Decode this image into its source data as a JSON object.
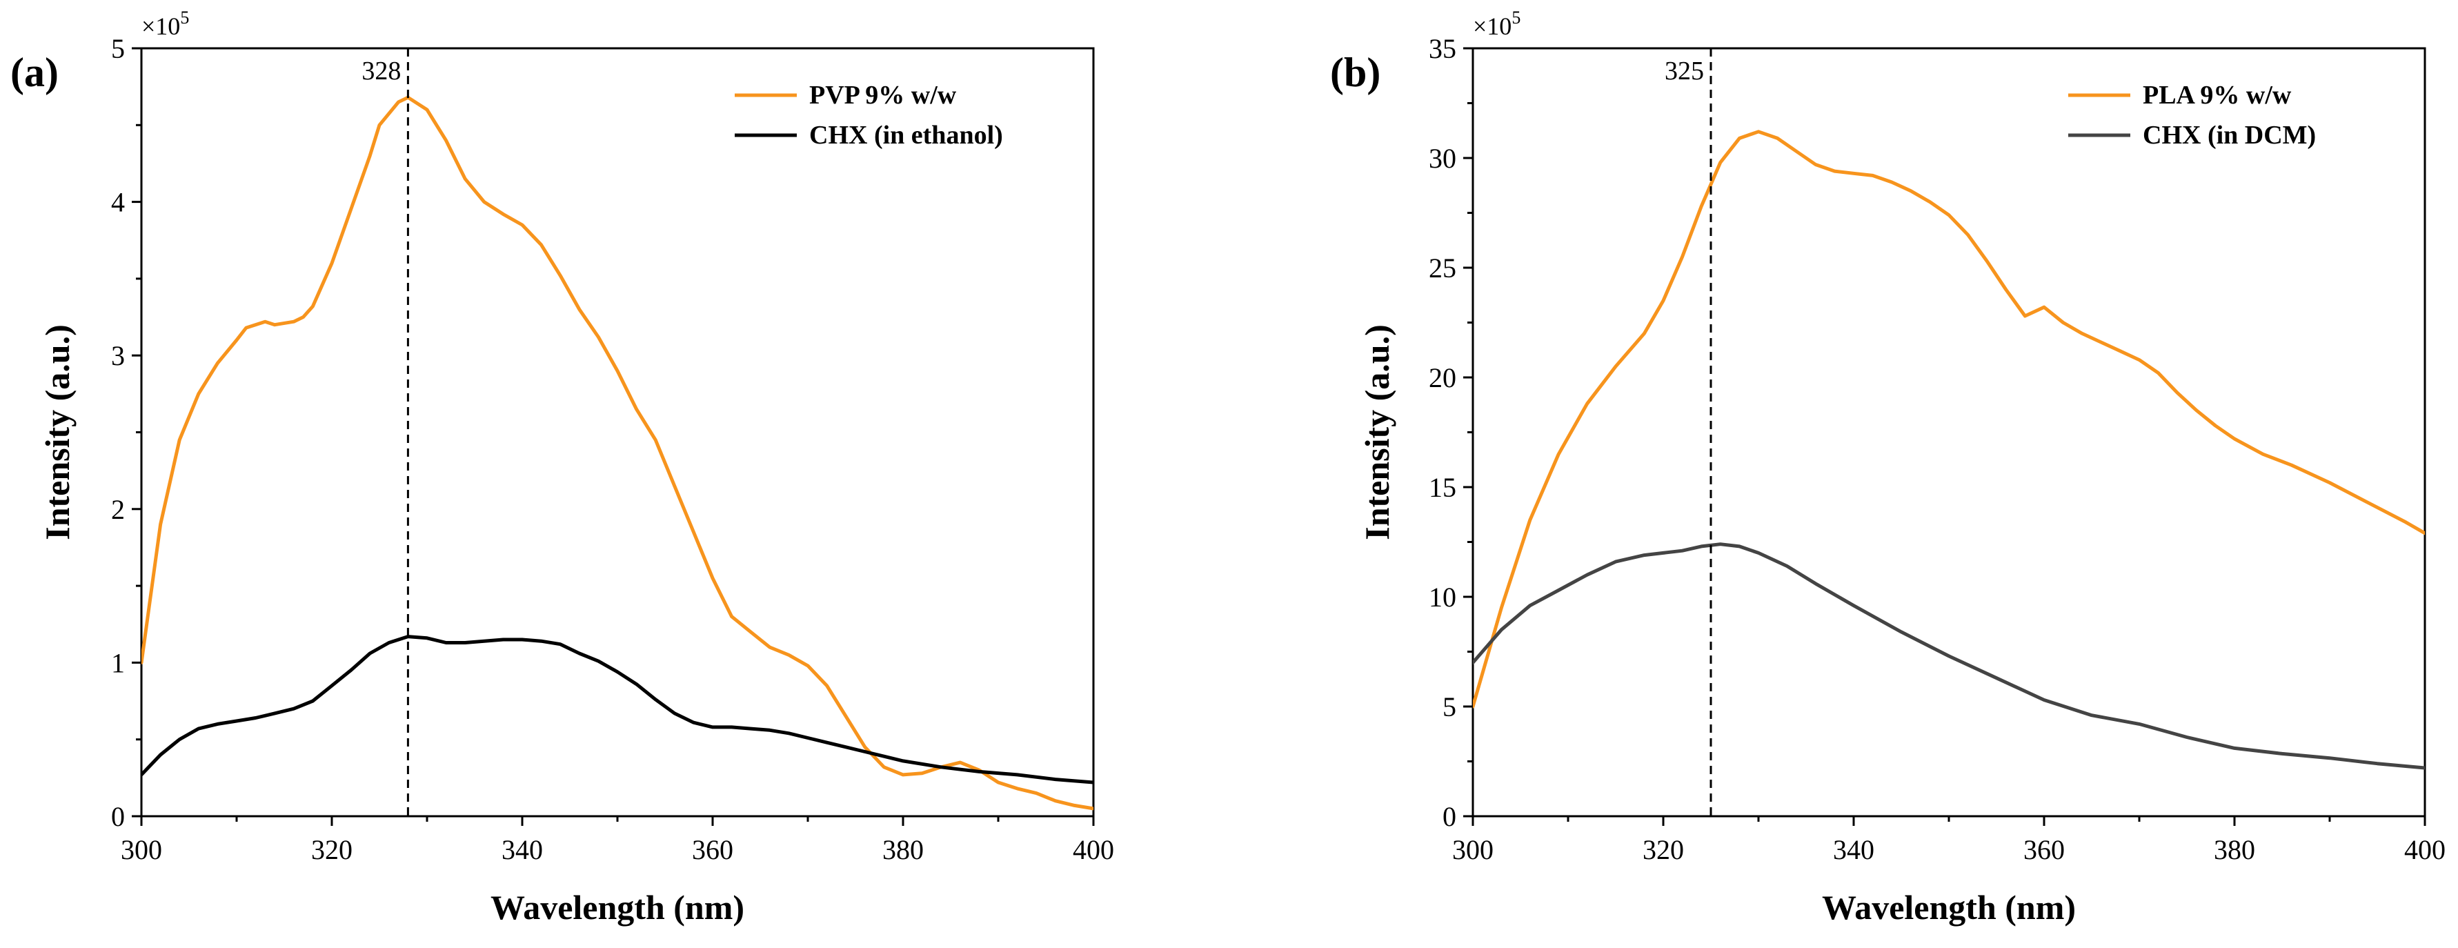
{
  "chart_data": [
    {
      "type": "line",
      "panel_label": "(a)",
      "xlabel": "Wavelength (nm)",
      "ylabel": "Intensity (a.u.)",
      "y_multiplier": {
        "base": "×10",
        "exponent": "5"
      },
      "xlim": [
        300,
        400
      ],
      "ylim": [
        0,
        5
      ],
      "xticks": [
        300,
        320,
        340,
        360,
        380,
        400
      ],
      "yticks": [
        0,
        1,
        2,
        3,
        4,
        5
      ],
      "legend_position": "top-right",
      "marker": {
        "x": 328,
        "label": "328"
      },
      "series": [
        {
          "name": "PVP 9% w/w",
          "color": "#F7941D",
          "x": [
            300,
            302,
            304,
            306,
            308,
            310,
            311,
            313,
            314,
            316,
            317,
            318,
            320,
            322,
            324,
            325,
            327,
            328,
            330,
            332,
            334,
            336,
            338,
            340,
            342,
            344,
            346,
            348,
            350,
            352,
            354,
            356,
            358,
            360,
            362,
            364,
            366,
            368,
            370,
            372,
            374,
            376,
            378,
            380,
            382,
            384,
            386,
            388,
            390,
            392,
            394,
            396,
            398,
            400
          ],
          "values": [
            1.0,
            1.9,
            2.45,
            2.75,
            2.95,
            3.1,
            3.18,
            3.22,
            3.2,
            3.22,
            3.25,
            3.32,
            3.6,
            3.95,
            4.3,
            4.5,
            4.65,
            4.68,
            4.6,
            4.4,
            4.15,
            4.0,
            3.92,
            3.85,
            3.72,
            3.52,
            3.3,
            3.12,
            2.9,
            2.65,
            2.45,
            2.15,
            1.85,
            1.55,
            1.3,
            1.2,
            1.1,
            1.05,
            0.98,
            0.85,
            0.65,
            0.45,
            0.32,
            0.27,
            0.28,
            0.32,
            0.35,
            0.3,
            0.22,
            0.18,
            0.15,
            0.1,
            0.07,
            0.05
          ]
        },
        {
          "name": "CHX (in ethanol)",
          "color": "#000000",
          "x": [
            300,
            302,
            304,
            306,
            308,
            310,
            312,
            314,
            316,
            318,
            320,
            322,
            324,
            326,
            328,
            330,
            332,
            334,
            336,
            338,
            340,
            342,
            344,
            346,
            348,
            350,
            352,
            354,
            356,
            358,
            360,
            362,
            364,
            366,
            368,
            370,
            372,
            374,
            376,
            378,
            380,
            384,
            388,
            392,
            396,
            400
          ],
          "values": [
            0.27,
            0.4,
            0.5,
            0.57,
            0.6,
            0.62,
            0.64,
            0.67,
            0.7,
            0.75,
            0.85,
            0.95,
            1.06,
            1.13,
            1.17,
            1.16,
            1.13,
            1.13,
            1.14,
            1.15,
            1.15,
            1.14,
            1.12,
            1.06,
            1.01,
            0.94,
            0.86,
            0.76,
            0.67,
            0.61,
            0.58,
            0.58,
            0.57,
            0.56,
            0.54,
            0.51,
            0.48,
            0.45,
            0.42,
            0.39,
            0.36,
            0.32,
            0.29,
            0.27,
            0.24,
            0.22
          ]
        }
      ]
    },
    {
      "type": "line",
      "panel_label": "(b)",
      "xlabel": "Wavelength (nm)",
      "ylabel": "Intensity (a.u.)",
      "y_multiplier": {
        "base": "×10",
        "exponent": "5"
      },
      "xlim": [
        300,
        400
      ],
      "ylim": [
        0,
        35
      ],
      "xticks": [
        300,
        320,
        340,
        360,
        380,
        400
      ],
      "yticks": [
        0,
        5,
        10,
        15,
        20,
        25,
        30,
        35
      ],
      "legend_position": "top-right",
      "marker": {
        "x": 325,
        "label": "325"
      },
      "series": [
        {
          "name": "PLA 9% w/w",
          "color": "#F7941D",
          "x": [
            300,
            303,
            306,
            309,
            312,
            315,
            318,
            320,
            322,
            324,
            326,
            328,
            330,
            332,
            334,
            336,
            338,
            340,
            342,
            344,
            346,
            348,
            350,
            352,
            354,
            356,
            358,
            360,
            362,
            364,
            366,
            368,
            370,
            372,
            374,
            376,
            378,
            380,
            383,
            386,
            390,
            394,
            398,
            400
          ],
          "values": [
            5.0,
            9.5,
            13.5,
            16.5,
            18.8,
            20.5,
            22.0,
            23.5,
            25.5,
            27.8,
            29.8,
            30.9,
            31.2,
            30.9,
            30.3,
            29.7,
            29.4,
            29.3,
            29.2,
            28.9,
            28.5,
            28.0,
            27.4,
            26.5,
            25.3,
            24.0,
            22.8,
            23.2,
            22.5,
            22.0,
            21.6,
            21.2,
            20.8,
            20.2,
            19.3,
            18.5,
            17.8,
            17.2,
            16.5,
            16.0,
            15.2,
            14.3,
            13.4,
            12.9
          ]
        },
        {
          "name": "CHX (in DCM)",
          "color": "#444444",
          "x": [
            300,
            303,
            306,
            309,
            312,
            315,
            318,
            320,
            322,
            324,
            326,
            328,
            330,
            333,
            336,
            340,
            345,
            350,
            355,
            360,
            365,
            370,
            375,
            380,
            385,
            390,
            395,
            400
          ],
          "values": [
            7.0,
            8.5,
            9.6,
            10.3,
            11.0,
            11.6,
            11.9,
            12.0,
            12.1,
            12.3,
            12.4,
            12.3,
            12.0,
            11.4,
            10.6,
            9.6,
            8.4,
            7.3,
            6.3,
            5.3,
            4.6,
            4.2,
            3.6,
            3.1,
            2.85,
            2.65,
            2.4,
            2.2
          ]
        }
      ]
    }
  ]
}
